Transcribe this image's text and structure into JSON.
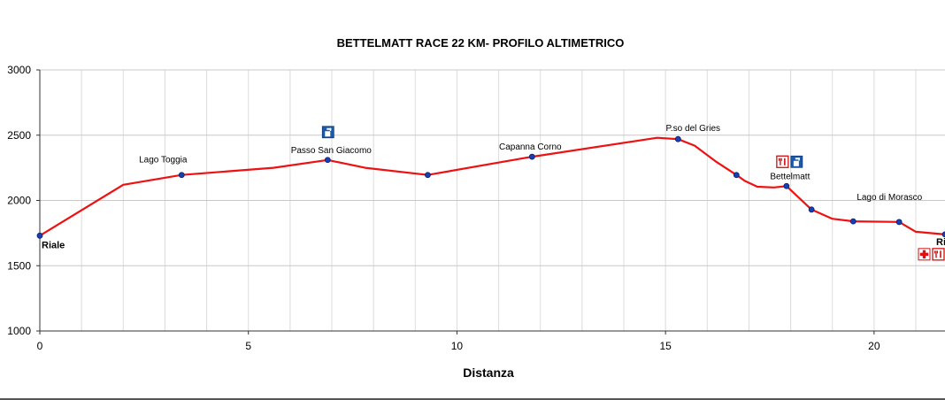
{
  "chart_data": {
    "type": "line",
    "title": "BETTELMATT RACE 22 KM- PROFILO ALTIMETRICO",
    "xlabel": "Distanza",
    "ylabel": "",
    "xlim": [
      0,
      21.7
    ],
    "ylim": [
      1000,
      3000
    ],
    "xticks": [
      0,
      5,
      10,
      15,
      20
    ],
    "yticks": [
      1000,
      1500,
      2000,
      2500,
      3000
    ],
    "grid": true,
    "line_color": "#ee1111",
    "marker_color": "#1a3fb5",
    "series": [
      {
        "x": [
          0,
          2,
          3.4,
          5.6,
          6.9,
          7.8,
          9.3,
          11.8,
          14.8,
          15.3,
          15.7,
          16.2,
          16.7,
          16.9,
          17.2,
          17.6,
          17.9,
          18.5,
          19.0,
          19.5,
          20.6,
          21.0,
          21.7
        ],
        "y": [
          1730,
          2120,
          2195,
          2250,
          2310,
          2250,
          2195,
          2335,
          2480,
          2470,
          2420,
          2300,
          2195,
          2150,
          2105,
          2100,
          2110,
          1930,
          1860,
          1840,
          1835,
          1760,
          1740
        ]
      }
    ],
    "waypoints": [
      {
        "label": "Riale",
        "x": 0,
        "y": 1730,
        "style": "bold"
      },
      {
        "label": "Lago Toggia",
        "x": 3.4,
        "y": 2195
      },
      {
        "label": "Passo San Giacomo",
        "x": 6.9,
        "y": 2310,
        "icons": [
          "water-icon"
        ]
      },
      {
        "label": "",
        "x": 9.3,
        "y": 2195
      },
      {
        "label": "Capanna Corno",
        "x": 11.8,
        "y": 2335
      },
      {
        "label": "P.so del Gries",
        "x": 15.3,
        "y": 2470
      },
      {
        "label": "",
        "x": 16.7,
        "y": 2195
      },
      {
        "label": "Bettelmatt",
        "x": 17.9,
        "y": 2110,
        "icons": [
          "food-icon",
          "water-icon"
        ]
      },
      {
        "label": "",
        "x": 18.5,
        "y": 1930
      },
      {
        "label": "Lago di Morasco",
        "x": 19.5,
        "y": 1840
      },
      {
        "label": "",
        "x": 20.6,
        "y": 1835
      },
      {
        "label": "Ria",
        "x": 21.7,
        "y": 1740,
        "style": "bold",
        "icons": [
          "first-aid-icon",
          "food-icon",
          "water-icon"
        ]
      }
    ]
  }
}
